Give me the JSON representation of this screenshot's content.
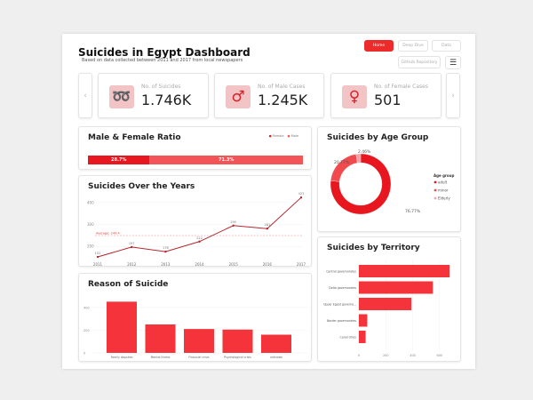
{
  "header": {
    "title": "Suicides in Egypt Dashboard",
    "subtitle": "Based on data collected between 2011 and 2017 from local newspapers"
  },
  "nav": {
    "home": "Home",
    "deep_dive": "Deep Dive",
    "data": "Data",
    "github": "GitHub Repository",
    "filter_icon": "filter-icon"
  },
  "kpis": [
    {
      "label": "No. of Suicides",
      "value": "1.746K",
      "icon": "noose-icon"
    },
    {
      "label": "No. of Male Cases",
      "value": "1.245K",
      "icon": "male-icon"
    },
    {
      "label": "No. of Female Cases",
      "value": "501",
      "icon": "female-icon"
    }
  ],
  "colors": {
    "accent": "#ee2b2b",
    "female": "#e8161f",
    "male": "#f25457",
    "line": "#b4262c",
    "elderly": "#f5a3a6"
  },
  "ratio": {
    "title": "Male & Female Ratio",
    "legend": [
      "Female",
      "Male"
    ],
    "female_pct": 28.7,
    "male_pct": 71.3,
    "female_label": "28.7%",
    "male_label": "71.3%"
  },
  "chart_data": [
    {
      "type": "line",
      "title": "Suicides Over the Years",
      "x": [
        "2011",
        "2012",
        "2013",
        "2014",
        "2015",
        "2016",
        "2017"
      ],
      "values": [
        152,
        197,
        176,
        222,
        295,
        281,
        423
      ],
      "yticks": [
        200,
        300,
        400
      ],
      "ylim": [
        140,
        440
      ],
      "average": 249.4,
      "average_label": "Average: 249.4"
    },
    {
      "type": "bar",
      "title": "Reason of Suicide",
      "categories": [
        "Family disputes",
        "Mental illness",
        "Financial crisis",
        "Psychological crisis",
        "unknown"
      ],
      "values": [
        450,
        250,
        210,
        205,
        160
      ],
      "yticks": [
        0,
        200,
        400
      ],
      "ylim": [
        0,
        500
      ]
    },
    {
      "type": "pie",
      "title": "Suicides by Age Group",
      "legend_title": "Age group",
      "categories": [
        "adult",
        "minor",
        "Elderly"
      ],
      "values": [
        76.77,
        20.77,
        2.46
      ],
      "labels": [
        "76.77%",
        "20.77%",
        "2.46%"
      ]
    },
    {
      "type": "bar",
      "orientation": "horizontal",
      "title": "Suicides by Territory",
      "categories": [
        "Central governorates",
        "Delta governorates",
        "Upper Egypt governorates",
        "Border governorates",
        "Canal cities"
      ],
      "category_labels": [
        "Central governorates",
        "Delta governorates",
        "Upper Egypt governo...",
        "Border governorates",
        "Canal cities"
      ],
      "values": [
        675,
        550,
        390,
        62,
        50
      ],
      "xticks": [
        0,
        200,
        400,
        600
      ],
      "xlim": [
        0,
        700
      ]
    }
  ]
}
